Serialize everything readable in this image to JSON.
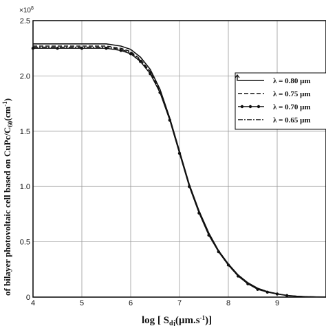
{
  "chart_data": {
    "type": "line",
    "xlabel": "log [ S",
    "xlabel_sub": "dj",
    "xlabel_unit": "(µm.s",
    "xlabel_sup": "-1",
    "xlabel_end": ")]",
    "ylabel": "of bilayer photovoltaic cell based on CuPc/C",
    "ylabel_sub": "60",
    "ylabel_unit": "(cm",
    "ylabel_sup": "-1",
    "ylabel_end": ")",
    "y_multiplier": "×10",
    "y_multiplier_exp": "8",
    "xlim": [
      4,
      10
    ],
    "ylim": [
      0,
      2.5
    ],
    "x_ticks": [
      "4",
      "5",
      "6",
      "7",
      "8",
      "9"
    ],
    "y_ticks": [
      "0",
      "0.5",
      "1.0",
      "1.5",
      "2.0",
      "2.5"
    ],
    "grid": true,
    "legend_position": "right",
    "x": [
      4.0,
      4.5,
      5.0,
      5.5,
      5.8,
      6.0,
      6.2,
      6.4,
      6.6,
      6.8,
      7.0,
      7.2,
      7.4,
      7.6,
      7.8,
      8.0,
      8.2,
      8.4,
      8.6,
      8.8,
      9.0,
      9.2,
      9.4,
      9.6,
      9.8,
      10.0
    ],
    "series": [
      {
        "name": "λ =  0.80 µm",
        "style": "solid",
        "values": [
          2.29,
          2.29,
          2.29,
          2.29,
          2.27,
          2.24,
          2.17,
          2.06,
          1.88,
          1.62,
          1.32,
          1.02,
          0.78,
          0.58,
          0.42,
          0.3,
          0.2,
          0.13,
          0.08,
          0.05,
          0.03,
          0.015,
          0.008,
          0.004,
          0.002,
          0.001
        ]
      },
      {
        "name": "λ =  0.75 µm",
        "style": "dashed",
        "values": [
          2.27,
          2.27,
          2.27,
          2.27,
          2.25,
          2.22,
          2.15,
          2.04,
          1.86,
          1.61,
          1.31,
          1.01,
          0.77,
          0.57,
          0.41,
          0.29,
          0.19,
          0.12,
          0.08,
          0.05,
          0.03,
          0.015,
          0.008,
          0.004,
          0.002,
          0.001
        ]
      },
      {
        "name": "λ =  0.70 µm",
        "style": "dotted",
        "values": [
          2.25,
          2.25,
          2.25,
          2.25,
          2.23,
          2.2,
          2.13,
          2.02,
          1.85,
          1.6,
          1.3,
          1.0,
          0.76,
          0.56,
          0.41,
          0.29,
          0.19,
          0.12,
          0.07,
          0.045,
          0.028,
          0.014,
          0.007,
          0.004,
          0.002,
          0.001
        ]
      },
      {
        "name": "λ =  0.65 µm",
        "style": "dashdot",
        "values": [
          2.26,
          2.26,
          2.26,
          2.26,
          2.24,
          2.21,
          2.14,
          2.03,
          1.85,
          1.61,
          1.31,
          1.01,
          0.77,
          0.57,
          0.41,
          0.29,
          0.19,
          0.12,
          0.075,
          0.047,
          0.029,
          0.015,
          0.008,
          0.004,
          0.002,
          0.001
        ]
      }
    ]
  }
}
